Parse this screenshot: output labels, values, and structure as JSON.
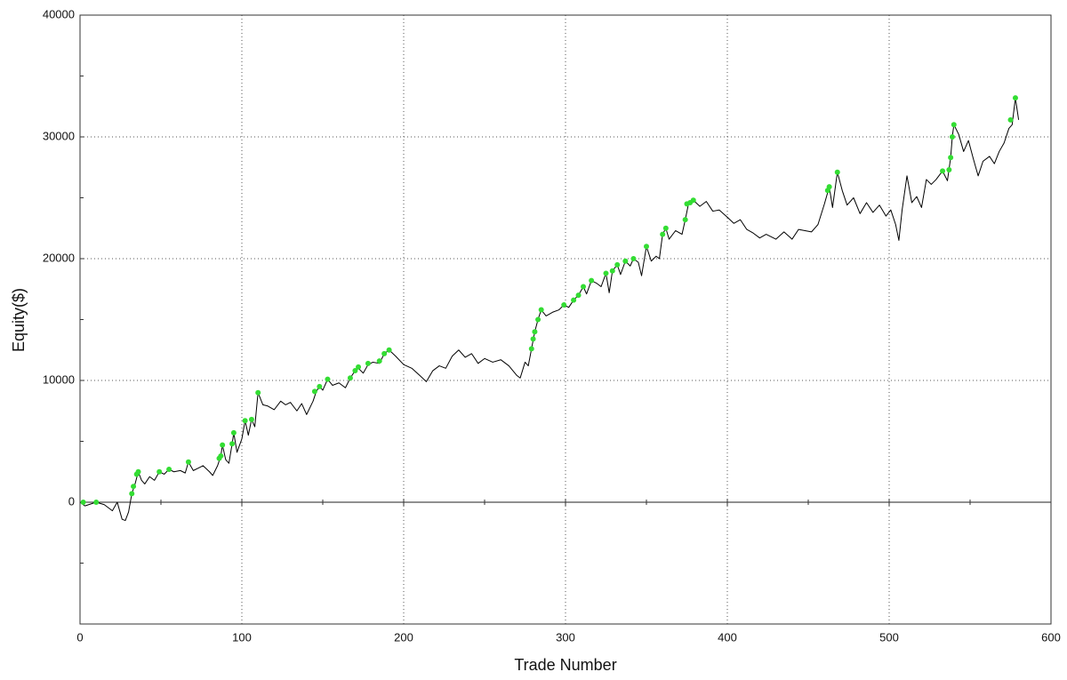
{
  "chart_data": {
    "type": "line",
    "x_label": "Trade Number",
    "y_label": "Equity($)",
    "xlim": [
      0,
      600
    ],
    "ylim": [
      -10000,
      40000
    ],
    "xticks": [
      0,
      100,
      200,
      300,
      400,
      500,
      600
    ],
    "yticks": [
      0,
      10000,
      20000,
      30000,
      40000
    ],
    "xminorticks": [
      50,
      150,
      250,
      350,
      450,
      550
    ],
    "yminorticks": [
      -5000,
      5000,
      15000,
      25000,
      35000
    ],
    "grid": true,
    "series": [
      {
        "style": "line",
        "color": "#000000",
        "x": [
          0,
          3,
          10,
          15,
          20,
          23,
          26,
          28,
          30,
          32,
          34,
          36,
          38,
          40,
          43,
          46,
          49,
          52,
          55,
          58,
          62,
          65,
          67,
          70,
          73,
          76,
          80,
          82,
          85,
          87,
          88,
          90,
          92,
          94,
          95,
          97,
          100,
          102,
          104,
          106,
          108,
          110,
          113,
          116,
          120,
          124,
          127,
          130,
          134,
          137,
          140,
          144,
          146,
          148,
          150,
          153,
          156,
          160,
          164,
          167,
          170,
          172,
          175,
          178,
          181,
          185,
          188,
          191,
          195,
          200,
          205,
          210,
          214,
          218,
          222,
          226,
          230,
          234,
          238,
          242,
          246,
          250,
          255,
          260,
          265,
          270,
          272,
          275,
          277,
          279,
          281,
          283,
          285,
          288,
          292,
          296,
          299,
          302,
          305,
          308,
          311,
          313,
          316,
          319,
          322,
          325,
          327,
          329,
          332,
          334,
          337,
          340,
          342,
          345,
          347,
          350,
          353,
          356,
          358,
          360,
          362,
          364,
          368,
          372,
          374,
          376,
          379,
          383,
          387,
          391,
          395,
          400,
          404,
          408,
          412,
          416,
          420,
          424,
          430,
          435,
          440,
          444,
          448,
          452,
          456,
          460,
          463,
          465,
          468,
          471,
          474,
          478,
          482,
          486,
          490,
          494,
          498,
          501,
          504,
          506,
          508,
          511,
          514,
          517,
          520,
          523,
          526,
          529,
          533,
          536,
          538,
          539,
          540,
          543,
          546,
          549,
          552,
          555,
          558,
          562,
          565,
          568,
          571,
          574,
          576,
          578,
          580
        ],
        "values": [
          0,
          -300,
          0,
          -200,
          -700,
          0,
          -1400,
          -1500,
          -800,
          700,
          1500,
          2500,
          1800,
          1500,
          2100,
          1800,
          2500,
          2300,
          2700,
          2500,
          2600,
          2400,
          3300,
          2600,
          2800,
          3000,
          2500,
          2200,
          3000,
          3800,
          4700,
          3500,
          3200,
          4800,
          5700,
          4100,
          5200,
          6700,
          5500,
          6800,
          6200,
          9000,
          8000,
          7900,
          7600,
          8300,
          8000,
          8200,
          7500,
          8100,
          7200,
          8300,
          9100,
          9500,
          9200,
          10100,
          9600,
          9800,
          9400,
          10200,
          10800,
          11000,
          10600,
          11300,
          11500,
          11400,
          12200,
          12500,
          12000,
          11300,
          11000,
          10400,
          9900,
          10800,
          11200,
          11000,
          12000,
          12500,
          11900,
          12200,
          11400,
          11800,
          11500,
          11700,
          11200,
          10400,
          10200,
          11500,
          11200,
          12600,
          14000,
          15000,
          15800,
          15300,
          15600,
          15800,
          16200,
          16000,
          16600,
          17000,
          17700,
          17100,
          18200,
          18000,
          17700,
          18800,
          17200,
          19000,
          19500,
          18700,
          19800,
          19400,
          20000,
          19700,
          18600,
          21000,
          19800,
          20200,
          20000,
          22000,
          22500,
          21600,
          22300,
          22000,
          23200,
          24500,
          24800,
          24300,
          24700,
          23900,
          24000,
          23400,
          22900,
          23200,
          22400,
          22100,
          21700,
          22000,
          21600,
          22200,
          21600,
          22400,
          22300,
          22200,
          22800,
          24500,
          25900,
          24200,
          27100,
          25600,
          24400,
          25000,
          23700,
          24600,
          23800,
          24400,
          23500,
          24000,
          22800,
          21500,
          24000,
          26800,
          24600,
          25100,
          24200,
          26500,
          26100,
          26500,
          27200,
          26400,
          28300,
          30000,
          31000,
          30200,
          28800,
          29700,
          28200,
          26800,
          28000,
          28400,
          27800,
          28800,
          29500,
          30700,
          31000,
          33200,
          31400
        ]
      },
      {
        "style": "markers",
        "color": "#33dd33",
        "x": [
          2,
          10,
          32,
          33,
          35,
          36,
          49,
          55,
          67,
          86,
          87,
          88,
          94,
          95,
          102,
          106,
          110,
          145,
          148,
          153,
          167,
          170,
          172,
          178,
          185,
          188,
          191,
          279,
          280,
          281,
          283,
          285,
          299,
          305,
          308,
          311,
          316,
          325,
          329,
          332,
          337,
          342,
          350,
          360,
          362,
          374,
          375,
          377,
          379,
          462,
          463,
          468,
          533,
          537,
          538,
          539,
          540,
          575,
          578
        ],
        "values": [
          0,
          0,
          700,
          1300,
          2300,
          2500,
          2500,
          2700,
          3300,
          3600,
          3800,
          4700,
          4800,
          5700,
          6700,
          6800,
          9000,
          9100,
          9500,
          10100,
          10200,
          10800,
          11100,
          11400,
          11600,
          12200,
          12500,
          12600,
          13400,
          14000,
          15000,
          15800,
          16200,
          16600,
          17000,
          17700,
          18200,
          18800,
          19000,
          19500,
          19800,
          20000,
          21000,
          22000,
          22500,
          23200,
          24500,
          24600,
          24800,
          25600,
          25900,
          27100,
          27200,
          27300,
          28300,
          30000,
          31000,
          31400,
          33200
        ]
      }
    ]
  }
}
